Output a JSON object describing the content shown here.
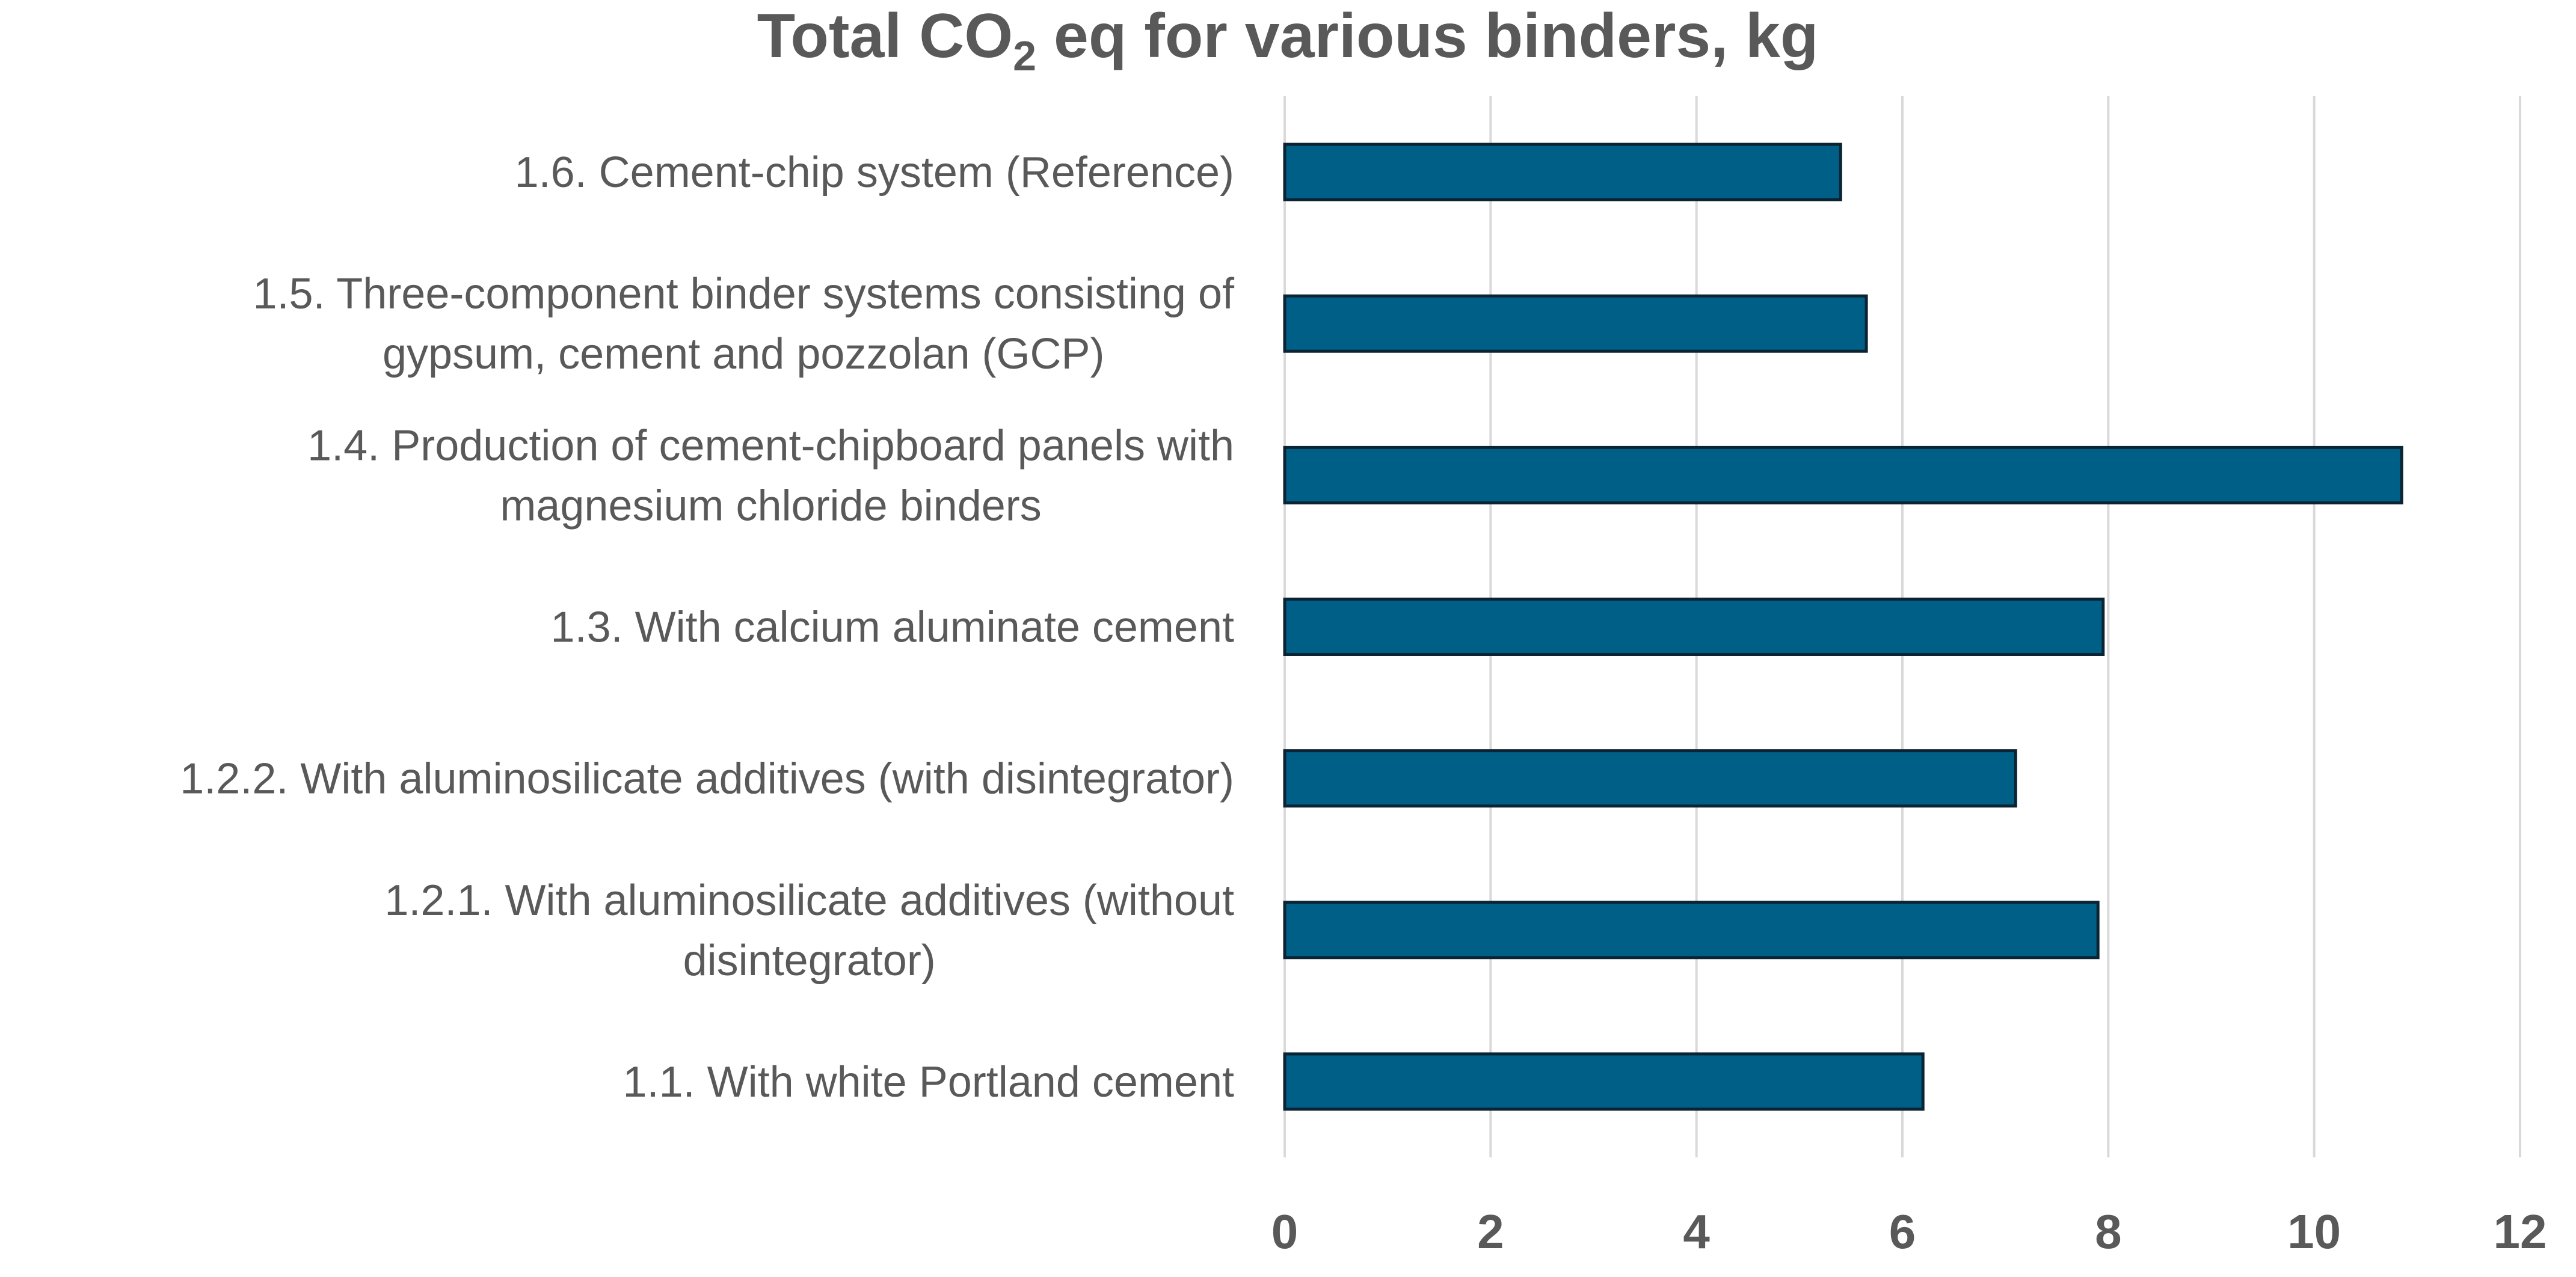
{
  "chart_data": {
    "type": "bar",
    "orientation": "horizontal",
    "title": {
      "main": "Total CO",
      "subscript": "2",
      "rest": " eq for various binders, kg"
    },
    "categories": [
      [
        "1.6. Cement-chip system (Reference)"
      ],
      [
        "1.5. Three-component binder systems consisting of",
        "gypsum, cement and pozzolan (GCP)"
      ],
      [
        "1.4. Production of cement-chipboard panels with",
        "magnesium chloride binders"
      ],
      [
        "1.3. With calcium aluminate cement"
      ],
      [
        "1.2.2. With aluminosilicate additives (with disintegrator)"
      ],
      [
        "1.2.1. With aluminosilicate additives (without",
        "disintegrator)"
      ],
      [
        "1.1. With white Portland cement"
      ]
    ],
    "values": [
      5.4,
      5.65,
      10.85,
      7.95,
      7.1,
      7.9,
      6.2
    ],
    "xlim": [
      0,
      12
    ],
    "xticks": [
      "0",
      "2",
      "4",
      "6",
      "8",
      "10",
      "12"
    ],
    "grid": true,
    "bar_color": "#005f87",
    "xlabel": "",
    "ylabel": ""
  }
}
